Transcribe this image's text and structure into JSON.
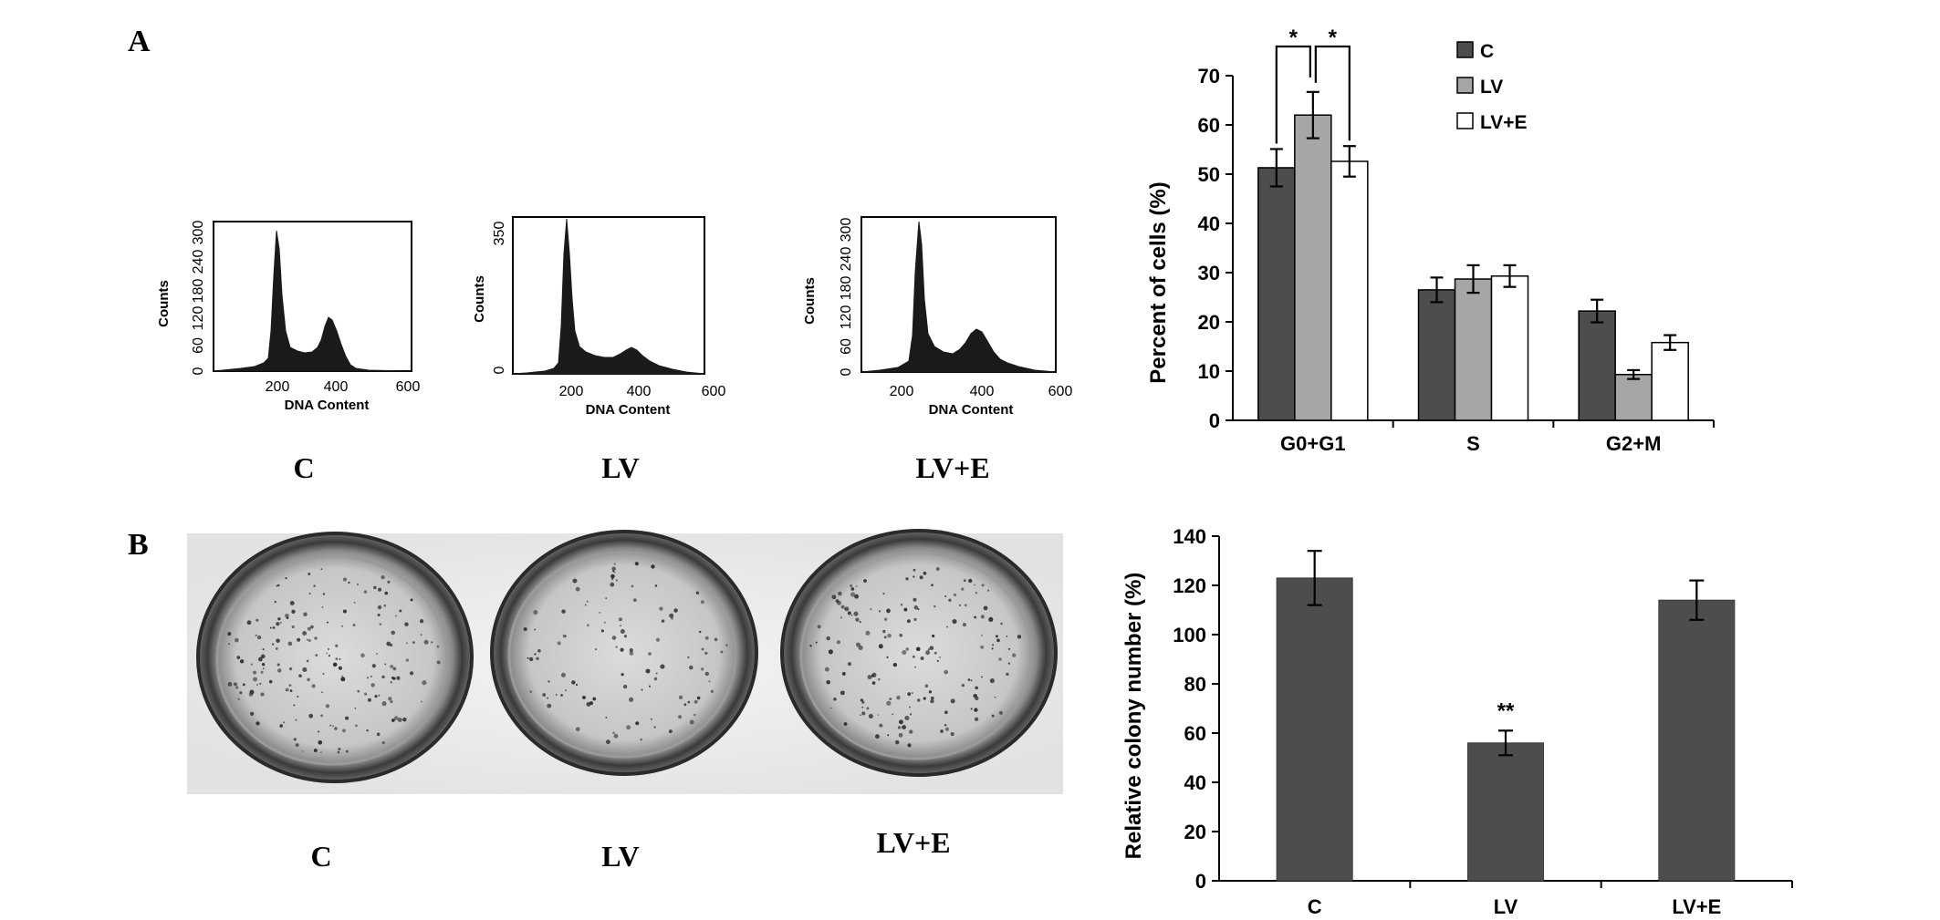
{
  "panels": {
    "A": {
      "letter": "A"
    },
    "B": {
      "letter": "B"
    }
  },
  "histograms": {
    "x_ticks": [
      "200",
      "400",
      "600"
    ],
    "x_label": "DNA Content",
    "y_label": "Counts",
    "items": [
      {
        "caption": "C",
        "y_ticks": [
          "0",
          "60",
          "120",
          "180",
          "240",
          "300"
        ]
      },
      {
        "caption": "LV",
        "y_ticks": [
          "0",
          "350"
        ]
      },
      {
        "caption": "LV+E",
        "y_ticks": [
          "0",
          "60",
          "120",
          "180",
          "240",
          "300"
        ]
      }
    ]
  },
  "plates": {
    "captions": [
      "C",
      "LV",
      "LV+E"
    ]
  },
  "colors": {
    "dark": "#4d4d4d",
    "light": "#a6a6a6",
    "white": "#ffffff",
    "outline": "#000000"
  },
  "chart_data": [
    {
      "type": "bar",
      "categories": [
        "G0+G1",
        "S",
        "G2+M"
      ],
      "series": [
        {
          "name": "C",
          "values": [
            51.3,
            26.5,
            22.2
          ],
          "errors": [
            3.8,
            2.5,
            2.3
          ],
          "color": "#4d4d4d"
        },
        {
          "name": "LV",
          "values": [
            62.0,
            28.7,
            9.3
          ],
          "errors": [
            4.7,
            2.8,
            0.9
          ],
          "color": "#a6a6a6"
        },
        {
          "name": "LV+E",
          "values": [
            52.6,
            29.3,
            15.8
          ],
          "errors": [
            3.1,
            2.2,
            1.5
          ],
          "color": "#ffffff"
        }
      ],
      "ylabel": "Percent of cells (%)",
      "ylim": [
        0,
        70
      ],
      "yticks": [
        "0",
        "10",
        "20",
        "30",
        "40",
        "50",
        "60",
        "70"
      ],
      "legend": "top-center",
      "annotations": [
        "*",
        "*"
      ],
      "grid": false
    },
    {
      "type": "bar",
      "categories": [
        "C",
        "LV",
        "LV+E"
      ],
      "series": [
        {
          "values": [
            123,
            56,
            114
          ],
          "errors": [
            11,
            5,
            8
          ],
          "color": "#4d4d4d"
        }
      ],
      "ylabel": "Relative colony number (%)",
      "ylim": [
        0,
        140
      ],
      "yticks": [
        "0",
        "20",
        "40",
        "60",
        "80",
        "100",
        "120",
        "140"
      ],
      "annotations": [
        "**"
      ],
      "grid": false
    }
  ]
}
